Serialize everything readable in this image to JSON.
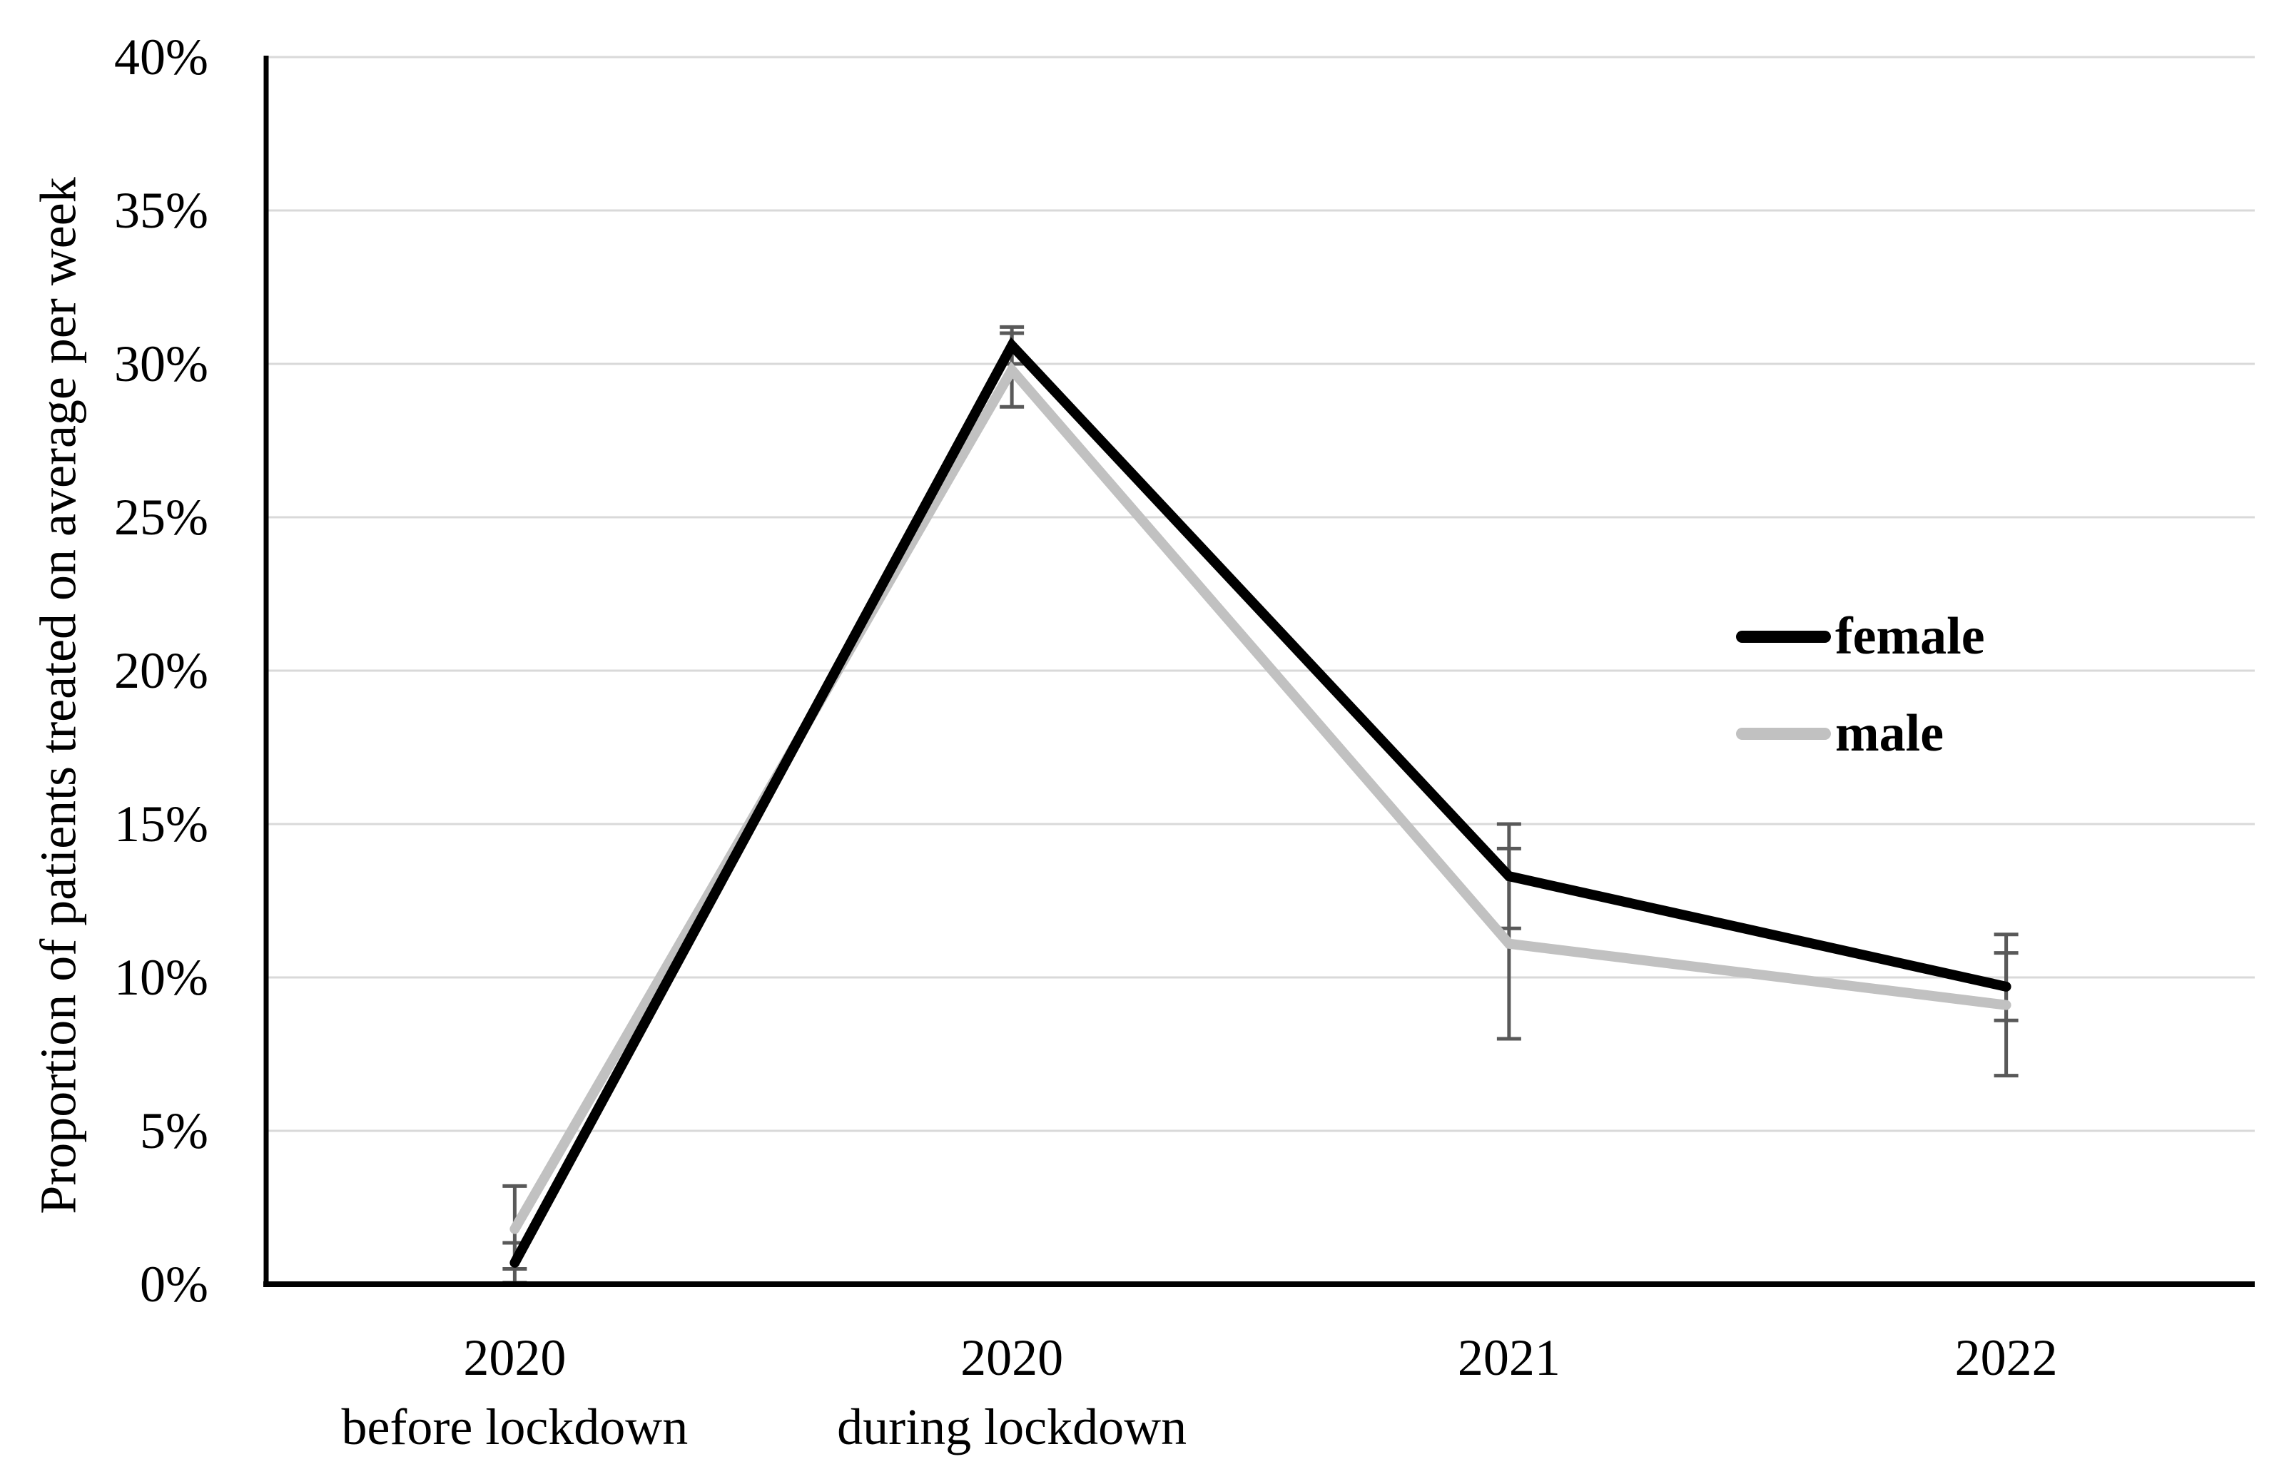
{
  "figure": {
    "background": "#ffffff"
  },
  "chart_data": {
    "type": "line",
    "title": "",
    "xlabel": "",
    "ylabel": "Proportion of patients treated on average per week",
    "ylim": [
      0,
      40
    ],
    "ytick_step": 5,
    "ytick_labels": [
      "0%",
      "5%",
      "10%",
      "15%",
      "20%",
      "25%",
      "30%",
      "35%",
      "40%"
    ],
    "categories": [
      "2020",
      "2020",
      "2021",
      "2022"
    ],
    "category_sublabels": [
      "before lockdown",
      "during lockdown",
      "",
      ""
    ],
    "grid": "horizontal-only",
    "gridline_color": "#d9d9d9",
    "axis_color": "#000000",
    "error_bar_color": "#595959",
    "legend_position": "right-middle-inside",
    "series": [
      {
        "name": "female",
        "color": "#000000",
        "values": [
          0.7,
          30.6,
          13.3,
          9.7
        ],
        "error_low": [
          0.05,
          30.0,
          11.6,
          8.6
        ],
        "error_high": [
          1.35,
          31.2,
          15.0,
          10.8
        ]
      },
      {
        "name": "male",
        "color": "#c1c1c1",
        "values": [
          1.8,
          29.8,
          11.1,
          9.1
        ],
        "error_low": [
          0.5,
          28.6,
          8.0,
          6.8
        ],
        "error_high": [
          3.2,
          31.0,
          14.2,
          11.4
        ]
      }
    ]
  }
}
